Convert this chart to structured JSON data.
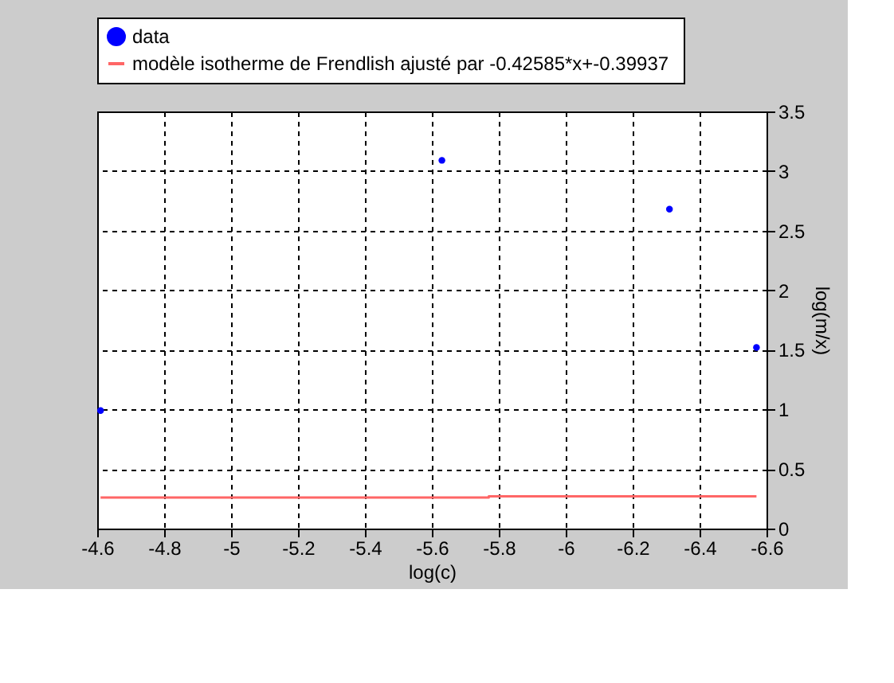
{
  "chart_data": {
    "type": "scatter",
    "xlabel": "log(c)",
    "ylabel": "log(m/x)",
    "xlim": [
      -4.6,
      -6.6
    ],
    "xticks": [
      -4.6,
      -4.8,
      -5,
      -5.2,
      -5.4,
      -5.6,
      -5.8,
      -6,
      -6.2,
      -6.4,
      -6.6
    ],
    "ylim": [
      0,
      3.5
    ],
    "yticks": [
      0,
      0.5,
      1,
      1.5,
      2,
      2.5,
      3,
      3.5
    ],
    "grid": true,
    "legend": "top",
    "series": [
      {
        "name": "data",
        "marker": "circle",
        "color": "#0000ff",
        "x": [
          -4.61,
          -5.63,
          -6.31,
          -6.57
        ],
        "values": [
          0.99,
          3.09,
          2.68,
          1.52
        ]
      },
      {
        "name": "modèle isotherme de Frendlish ajusté par  -0.42585*x+-0.39937",
        "type": "line",
        "color": "#ff6666",
        "line_style": "solid",
        "x": [
          -4.61,
          -5.77,
          -5.77,
          -6.57
        ],
        "values": [
          0.26,
          0.26,
          0.27,
          0.27
        ]
      }
    ]
  }
}
